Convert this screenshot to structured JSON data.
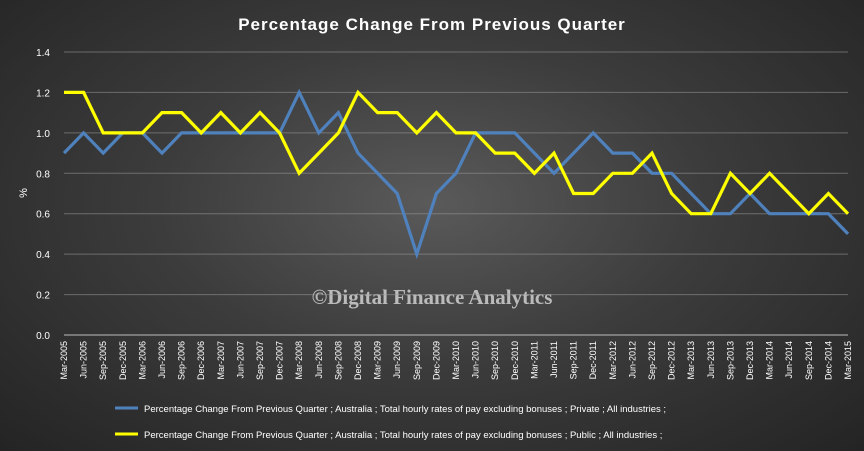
{
  "chart_data": {
    "type": "line",
    "title": "Percentage Change From Previous Quarter",
    "xlabel": "",
    "ylabel": "%",
    "ylim": [
      0,
      1.4
    ],
    "y_ticks": [
      "0.0",
      "0.2",
      "0.4",
      "0.6",
      "0.8",
      "1.0",
      "1.2",
      "1.4"
    ],
    "grid": true,
    "legend_position": "bottom",
    "watermark": "©Digital Finance Analytics",
    "categories": [
      "Mar-2005",
      "Jun-2005",
      "Sep-2005",
      "Dec-2005",
      "Mar-2006",
      "Jun-2006",
      "Sep-2006",
      "Dec-2006",
      "Mar-2007",
      "Jun-2007",
      "Sep-2007",
      "Dec-2007",
      "Mar-2008",
      "Jun-2008",
      "Sep-2008",
      "Dec-2008",
      "Mar-2009",
      "Jun-2009",
      "Sep-2009",
      "Dec-2009",
      "Mar-2010",
      "Jun-2010",
      "Sep-2010",
      "Dec-2010",
      "Mar-2011",
      "Jun-2011",
      "Sep-2011",
      "Dec-2011",
      "Mar-2012",
      "Jun-2012",
      "Sep-2012",
      "Dec-2012",
      "Mar-2013",
      "Jun-2013",
      "Sep-2013",
      "Dec-2013",
      "Mar-2014",
      "Jun-2014",
      "Sep-2014",
      "Dec-2014",
      "Mar-2015"
    ],
    "series": [
      {
        "name": "Percentage Change From Previous Quarter ;  Australia ;  Total hourly rates of pay excluding bonuses ;  Private ;  All industries ;",
        "color": "#4f81bd",
        "values": [
          0.9,
          1.0,
          0.9,
          1.0,
          1.0,
          0.9,
          1.0,
          1.0,
          1.0,
          1.0,
          1.0,
          1.0,
          1.2,
          1.0,
          1.1,
          0.9,
          0.8,
          0.7,
          0.4,
          0.7,
          0.8,
          1.0,
          1.0,
          1.0,
          0.9,
          0.8,
          0.9,
          1.0,
          0.9,
          0.9,
          0.8,
          0.8,
          0.7,
          0.6,
          0.6,
          0.7,
          0.6,
          0.6,
          0.6,
          0.6,
          0.5
        ]
      },
      {
        "name": "Percentage Change From Previous Quarter ;  Australia ;  Total hourly rates of pay excluding bonuses ;  Public ;  All industries ;",
        "color": "#ffff00",
        "values": [
          1.2,
          1.2,
          1.0,
          1.0,
          1.0,
          1.1,
          1.1,
          1.0,
          1.1,
          1.0,
          1.1,
          1.0,
          0.8,
          0.9,
          1.0,
          1.2,
          1.1,
          1.1,
          1.0,
          1.1,
          1.0,
          1.0,
          0.9,
          0.9,
          0.8,
          0.9,
          0.7,
          0.7,
          0.8,
          0.8,
          0.9,
          0.7,
          0.6,
          0.6,
          0.8,
          0.7,
          0.8,
          0.7,
          0.6,
          0.7,
          0.6
        ]
      }
    ]
  }
}
